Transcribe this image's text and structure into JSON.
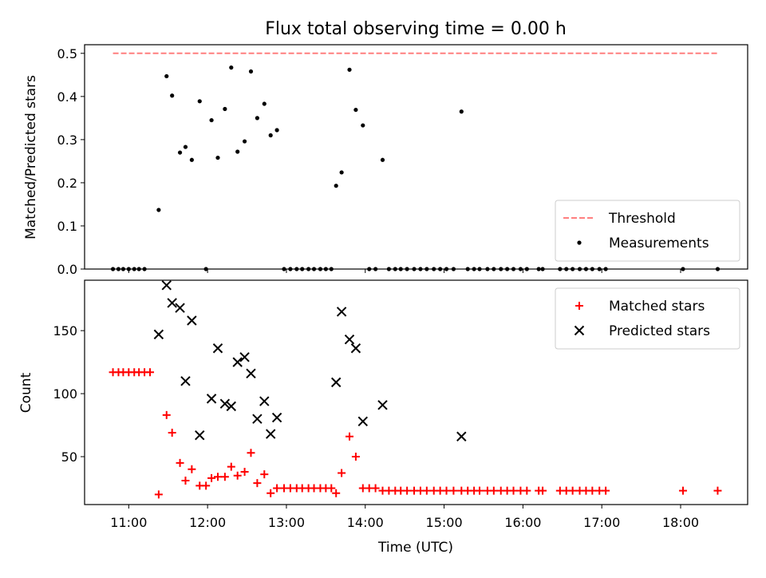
{
  "figure": {
    "title": "Flux total observing time = 0.00 h",
    "xlabel": "Time (UTC)"
  },
  "chart_data": [
    {
      "type": "scatter",
      "panel": "top",
      "ylabel": "Matched/Predicted stars",
      "xlim": [
        10.44,
        18.85
      ],
      "ylim": [
        0,
        0.52
      ],
      "yticks": [
        0.0,
        0.1,
        0.2,
        0.3,
        0.4,
        0.5
      ],
      "ytick_labels": [
        "0.0",
        "0.1",
        "0.2",
        "0.3",
        "0.4",
        "0.5"
      ],
      "legend_position": "lower-right",
      "threshold": {
        "name": "Threshold",
        "value": 0.5,
        "x_range": [
          10.8,
          18.47
        ],
        "color": "#ff7f7f",
        "style": "dashed"
      },
      "series": [
        {
          "name": "Measurements",
          "color": "#000000",
          "marker": "dot",
          "x": [
            10.8,
            10.87,
            10.93,
            11.0,
            11.07,
            11.13,
            11.2,
            11.38,
            11.48,
            11.55,
            11.65,
            11.72,
            11.8,
            11.9,
            11.98,
            12.05,
            12.13,
            12.22,
            12.3,
            12.38,
            12.47,
            12.55,
            12.63,
            12.72,
            12.8,
            12.88,
            12.97,
            13.05,
            13.13,
            13.2,
            13.28,
            13.35,
            13.43,
            13.5,
            13.57,
            13.63,
            13.7,
            13.8,
            13.88,
            13.97,
            14.05,
            14.13,
            14.22,
            14.3,
            14.38,
            14.45,
            14.53,
            14.62,
            14.7,
            14.78,
            14.87,
            14.95,
            15.03,
            15.12,
            15.22,
            15.3,
            15.38,
            15.45,
            15.55,
            15.63,
            15.72,
            15.8,
            15.88,
            15.97,
            16.05,
            16.2,
            16.25,
            16.47,
            16.55,
            16.63,
            16.72,
            16.8,
            16.88,
            16.97,
            17.05,
            18.03,
            18.47
          ],
          "y": [
            0,
            0,
            0,
            0,
            0,
            0,
            0,
            0.137,
            0.447,
            0.402,
            0.27,
            0.283,
            0.253,
            0.389,
            0,
            0.345,
            0.258,
            0.371,
            0.467,
            0.272,
            0.296,
            0.458,
            0.35,
            0.383,
            0.31,
            0.322,
            0,
            0,
            0,
            0,
            0,
            0,
            0,
            0,
            0,
            0.193,
            0.224,
            0.462,
            0.369,
            0.333,
            0,
            0,
            0.253,
            0,
            0,
            0,
            0,
            0,
            0,
            0,
            0,
            0,
            0,
            0,
            0.365,
            0,
            0,
            0,
            0,
            0,
            0,
            0,
            0,
            0,
            0,
            0,
            0,
            0,
            0,
            0,
            0,
            0,
            0,
            0,
            0,
            0,
            0
          ]
        }
      ]
    },
    {
      "type": "scatter",
      "panel": "bottom",
      "ylabel": "Count",
      "xlim": [
        10.44,
        18.85
      ],
      "ylim": [
        12,
        190
      ],
      "yticks": [
        50,
        100,
        150
      ],
      "ytick_labels": [
        "50",
        "100",
        "150"
      ],
      "xticks": [
        11,
        12,
        13,
        14,
        15,
        16,
        17,
        18
      ],
      "xtick_labels": [
        "11:00",
        "12:00",
        "13:00",
        "14:00",
        "15:00",
        "16:00",
        "17:00",
        "18:00"
      ],
      "legend_position": "top-right",
      "series": [
        {
          "name": "Matched stars",
          "color": "#ff0000",
          "marker": "plus",
          "x": [
            10.8,
            10.87,
            10.93,
            11.0,
            11.07,
            11.13,
            11.2,
            11.27,
            11.38,
            11.48,
            11.55,
            11.65,
            11.72,
            11.8,
            11.9,
            11.98,
            12.05,
            12.13,
            12.22,
            12.3,
            12.38,
            12.47,
            12.55,
            12.63,
            12.72,
            12.8,
            12.88,
            12.97,
            13.05,
            13.13,
            13.2,
            13.28,
            13.35,
            13.43,
            13.5,
            13.57,
            13.63,
            13.7,
            13.8,
            13.88,
            13.97,
            14.05,
            14.13,
            14.22,
            14.3,
            14.38,
            14.45,
            14.53,
            14.62,
            14.7,
            14.78,
            14.87,
            14.95,
            15.03,
            15.12,
            15.22,
            15.3,
            15.38,
            15.45,
            15.55,
            15.63,
            15.72,
            15.8,
            15.88,
            15.97,
            16.05,
            16.2,
            16.25,
            16.47,
            16.55,
            16.63,
            16.72,
            16.8,
            16.88,
            16.97,
            17.05,
            18.03,
            18.47
          ],
          "y": [
            117,
            117,
            117,
            117,
            117,
            117,
            117,
            117,
            20,
            83,
            69,
            45,
            31,
            40,
            27,
            27,
            33,
            34,
            34,
            42,
            35,
            38,
            53,
            29,
            36,
            21,
            25,
            25,
            25,
            25,
            25,
            25,
            25,
            25,
            25,
            25,
            21,
            37,
            66,
            50,
            25,
            25,
            25,
            23,
            23,
            23,
            23,
            23,
            23,
            23,
            23,
            23,
            23,
            23,
            23,
            23,
            23,
            23,
            23,
            23,
            23,
            23,
            23,
            23,
            23,
            23,
            23,
            23,
            23,
            23,
            23,
            23,
            23,
            23,
            23,
            23,
            23,
            23
          ]
        },
        {
          "name": "Predicted stars",
          "color": "#000000",
          "marker": "x",
          "x": [
            11.38,
            11.48,
            11.55,
            11.65,
            11.72,
            11.8,
            11.9,
            12.05,
            12.13,
            12.22,
            12.3,
            12.38,
            12.47,
            12.55,
            12.63,
            12.72,
            12.8,
            12.88,
            13.63,
            13.7,
            13.8,
            13.88,
            13.97,
            14.22,
            15.22
          ],
          "y": [
            147,
            186,
            172,
            168,
            110,
            158,
            67,
            96,
            136,
            92,
            90,
            125,
            129,
            116,
            80,
            94,
            68,
            81,
            109,
            165,
            143,
            136,
            78,
            91,
            66
          ]
        }
      ]
    }
  ]
}
